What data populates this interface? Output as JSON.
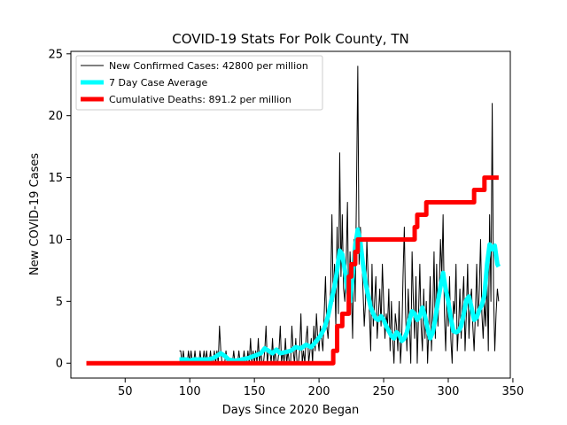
{
  "chart_data": {
    "type": "line",
    "title": "COVID-19 Stats For Polk County, TN",
    "xlabel": "Days Since 2020 Began",
    "ylabel": "New COVID-19 Cases",
    "xlim": [
      8,
      348
    ],
    "ylim": [
      -1.2,
      25.2
    ],
    "xticks": [
      50,
      100,
      150,
      200,
      250,
      300,
      350
    ],
    "yticks": [
      0,
      5,
      10,
      15,
      20,
      25
    ],
    "grid": false,
    "legend_position": "top-left",
    "series": [
      {
        "name": "New Confirmed Cases: 42800 per million",
        "color": "#000000",
        "x": [
          92,
          93,
          94,
          95,
          96,
          97,
          98,
          99,
          100,
          101,
          102,
          103,
          104,
          105,
          106,
          107,
          108,
          109,
          110,
          111,
          112,
          113,
          114,
          115,
          116,
          117,
          118,
          119,
          120,
          121,
          122,
          123,
          124,
          125,
          126,
          127,
          128,
          129,
          130,
          131,
          132,
          133,
          134,
          135,
          136,
          137,
          138,
          139,
          140,
          141,
          142,
          143,
          144,
          145,
          146,
          147,
          148,
          149,
          150,
          151,
          152,
          153,
          154,
          155,
          156,
          157,
          158,
          159,
          160,
          161,
          162,
          163,
          164,
          165,
          166,
          167,
          168,
          169,
          170,
          171,
          172,
          173,
          174,
          175,
          176,
          177,
          178,
          179,
          180,
          181,
          182,
          183,
          184,
          185,
          186,
          187,
          188,
          189,
          190,
          191,
          192,
          193,
          194,
          195,
          196,
          197,
          198,
          199,
          200,
          201,
          202,
          203,
          204,
          205,
          206,
          207,
          208,
          209,
          210,
          211,
          212,
          213,
          214,
          215,
          216,
          217,
          218,
          219,
          220,
          221,
          222,
          223,
          224,
          225,
          226,
          227,
          228,
          229,
          230,
          231,
          232,
          233,
          234,
          235,
          236,
          237,
          238,
          239,
          240,
          241,
          242,
          243,
          244,
          245,
          246,
          247,
          248,
          249,
          250,
          251,
          252,
          253,
          254,
          255,
          256,
          257,
          258,
          259,
          260,
          261,
          262,
          263,
          264,
          265,
          266,
          267,
          268,
          269,
          270,
          271,
          272,
          273,
          274,
          275,
          276,
          277,
          278,
          279,
          280,
          281,
          282,
          283,
          284,
          285,
          286,
          287,
          288,
          289,
          290,
          291,
          292,
          293,
          294,
          295,
          296,
          297,
          298,
          299,
          300,
          301,
          302,
          303,
          304,
          305,
          306,
          307,
          308,
          309,
          310,
          311,
          312,
          313,
          314,
          315,
          316,
          317,
          318,
          319,
          320,
          321,
          322,
          323,
          324,
          325,
          326,
          327,
          328,
          329,
          330,
          331,
          332,
          333,
          334,
          335,
          336,
          337,
          338,
          339
        ],
        "y": [
          1,
          1,
          0,
          1,
          0,
          0,
          0,
          1,
          0,
          1,
          0,
          0,
          1,
          0,
          0,
          0,
          1,
          0,
          0,
          1,
          0,
          1,
          0,
          0,
          1,
          0,
          0,
          1,
          0,
          1,
          0,
          3,
          1,
          0,
          0,
          0,
          1,
          0,
          0,
          0,
          0,
          0,
          1,
          0,
          0,
          0,
          1,
          0,
          0,
          0,
          1,
          0,
          0,
          1,
          0,
          2,
          0,
          1,
          0,
          1,
          0,
          2,
          0,
          1,
          0,
          0,
          1,
          3,
          0,
          1,
          1,
          0,
          2,
          0,
          1,
          0,
          0,
          1,
          3,
          0,
          1,
          0,
          2,
          0,
          1,
          0,
          0,
          3,
          1,
          0,
          2,
          0,
          0,
          1,
          4,
          0,
          1,
          0,
          2,
          3,
          0,
          1,
          2,
          0,
          3,
          1,
          4,
          2,
          1,
          3,
          2,
          1,
          4,
          7,
          3,
          2,
          4,
          6,
          12,
          5,
          8,
          3,
          11,
          4,
          17,
          7,
          12,
          6,
          5,
          8,
          13,
          4,
          9,
          6,
          2,
          10,
          5,
          14,
          24,
          8,
          11,
          9,
          6,
          3,
          5,
          10,
          7,
          4,
          1,
          8,
          3,
          5,
          7,
          2,
          4,
          6,
          3,
          8,
          5,
          2,
          4,
          3,
          6,
          1,
          5,
          2,
          0,
          4,
          3,
          1,
          5,
          0,
          2,
          7,
          11,
          4,
          1,
          6,
          3,
          0,
          9,
          5,
          2,
          7,
          0,
          4,
          8,
          3,
          1,
          6,
          2,
          5,
          0,
          3,
          7,
          1,
          4,
          9,
          2,
          8,
          3,
          6,
          10,
          7,
          12,
          4,
          1,
          6,
          3,
          7,
          2,
          0,
          5,
          4,
          8,
          1,
          3,
          6,
          2,
          5,
          7,
          1,
          4,
          8,
          2,
          5,
          6,
          3,
          1,
          4,
          8,
          3,
          6,
          10,
          4,
          2,
          5,
          3,
          7,
          1,
          12,
          5,
          21,
          6,
          1,
          4,
          6,
          5
        ],
        "line_width": 1
      },
      {
        "name": "7 Day Case Average",
        "color": "#00ffff",
        "x": [
          92,
          95,
          98,
          100,
          103,
          106,
          110,
          114,
          118,
          121,
          124,
          127,
          130,
          135,
          140,
          145,
          150,
          155,
          158,
          161,
          164,
          167,
          170,
          174,
          178,
          182,
          186,
          190,
          194,
          198,
          201,
          204,
          207,
          210,
          212,
          214,
          216,
          218,
          220,
          222,
          224,
          226,
          228,
          230,
          232,
          234,
          236,
          238,
          240,
          242,
          244,
          246,
          248,
          250,
          252,
          254,
          256,
          258,
          260,
          262,
          264,
          266,
          268,
          270,
          272,
          274,
          276,
          278,
          280,
          282,
          284,
          286,
          288,
          290,
          292,
          294,
          296,
          298,
          300,
          302,
          304,
          306,
          308,
          310,
          312,
          314,
          316,
          318,
          320,
          322,
          324,
          326,
          328,
          330,
          332,
          334,
          336,
          338,
          339
        ],
        "y": [
          0.3,
          0.3,
          0.3,
          0.2,
          0.3,
          0.3,
          0.3,
          0.3,
          0.4,
          0.6,
          0.8,
          0.6,
          0.3,
          0.2,
          0.3,
          0.4,
          0.6,
          0.8,
          1.2,
          1.0,
          0.8,
          1.1,
          0.8,
          0.9,
          1.0,
          1.3,
          1.2,
          1.5,
          1.3,
          1.8,
          2.2,
          2.8,
          3.8,
          5.3,
          6.2,
          7.5,
          9.1,
          8.8,
          7.5,
          6.0,
          5.0,
          7.0,
          9.5,
          10.8,
          9.8,
          8.0,
          6.5,
          5.5,
          4.5,
          4.0,
          3.6,
          3.5,
          3.8,
          3.5,
          3.0,
          2.6,
          2.2,
          2.0,
          2.5,
          2.3,
          1.8,
          2.0,
          2.5,
          3.5,
          4.2,
          4.0,
          3.5,
          3.8,
          4.5,
          3.8,
          2.8,
          2.0,
          2.5,
          3.6,
          5.0,
          6.2,
          7.3,
          6.0,
          5.0,
          3.6,
          2.6,
          2.5,
          2.6,
          3.0,
          4.0,
          5.1,
          5.4,
          4.5,
          3.5,
          3.7,
          4.3,
          4.7,
          5.5,
          8.0,
          9.6,
          9.2,
          9.5,
          8.0,
          7.8
        ],
        "line_width": 5
      },
      {
        "name": "Cumulative Deaths: 891.2 per million",
        "color": "#ff0000",
        "x": [
          20,
          211,
          211,
          214,
          214,
          218,
          218,
          223,
          223,
          225,
          225,
          228,
          228,
          230,
          230,
          274,
          274,
          276,
          276,
          281,
          281,
          283,
          283,
          320,
          320,
          328,
          328,
          339
        ],
        "y": [
          0,
          0,
          1,
          1,
          3,
          3,
          4,
          4,
          7,
          7,
          8,
          8,
          9,
          9,
          10,
          10,
          11,
          11,
          12,
          12,
          12,
          12,
          13,
          13,
          14,
          14,
          15,
          15
        ],
        "line_width": 5,
        "step": true
      }
    ]
  }
}
